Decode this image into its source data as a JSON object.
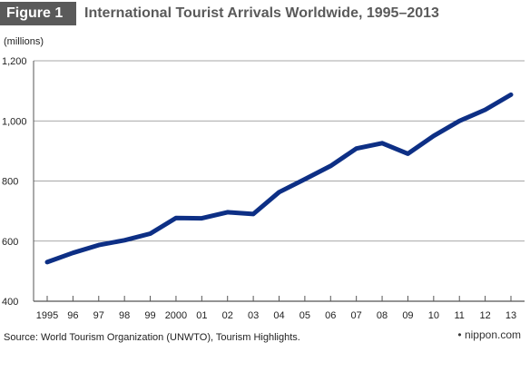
{
  "figure": {
    "label": "Figure 1",
    "title": "International Tourist Arrivals Worldwide, 1995–2013"
  },
  "unit_label": "(millions)",
  "source": "Source: World Tourism Organization (UNWTO), Tourism Highlights.",
  "brand": "nippon.com",
  "colors": {
    "line": "#0d2f85",
    "grid": "#8a8a8a",
    "header_bg": "#5a5a5a",
    "title": "#5a5a5a"
  },
  "chart_data": {
    "type": "line",
    "title": "International Tourist Arrivals Worldwide, 1995–2013",
    "ylabel": "(millions)",
    "x": [
      "1995",
      "96",
      "97",
      "98",
      "99",
      "2000",
      "01",
      "02",
      "03",
      "04",
      "05",
      "06",
      "07",
      "08",
      "09",
      "10",
      "11",
      "12",
      "13"
    ],
    "series": [
      {
        "values": [
          530,
          561,
          587,
          603,
          625,
          677,
          676,
          696,
          690,
          763,
          806,
          850,
          908,
          926,
          891,
          950,
          1000,
          1037,
          1087
        ]
      }
    ],
    "ylim": [
      400,
      1200
    ],
    "yticks": [
      400,
      600,
      800,
      1000,
      1200
    ],
    "ytick_labels": [
      "400",
      "600",
      "800",
      "1,000",
      "1,200"
    ],
    "grid": true,
    "legend": "none"
  }
}
